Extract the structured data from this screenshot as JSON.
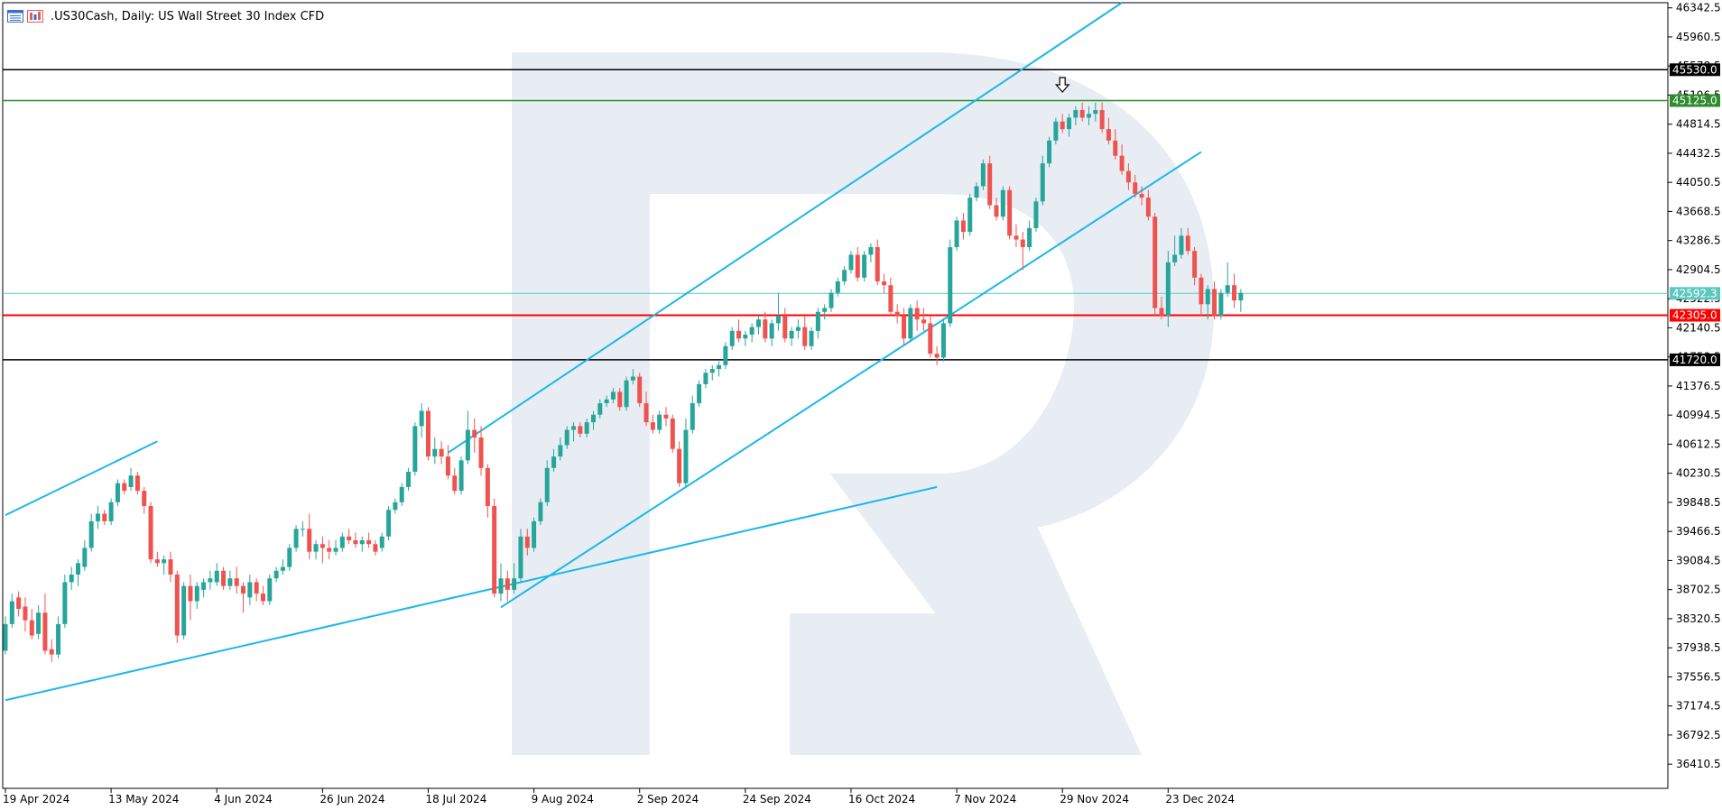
{
  "header": {
    "symbol": ".US30Cash, Daily:",
    "description": "US Wall Street 30 Index CFD",
    "icons": [
      "toolbar-list-icon",
      "bar-chart-icon"
    ]
  },
  "colors": {
    "bull": "#26a69a",
    "bear": "#ef5350",
    "trendline": "#1ab7ea",
    "resistance": "#000000",
    "take_profit": "#2e8b2e",
    "stop": "#ff0000",
    "current_price": "#5cc8c0",
    "watermark": "#e8edf4"
  },
  "chart_data": {
    "type": "candlestick",
    "symbol": ".US30Cash",
    "timeframe": "Daily",
    "ylim": [
      36092.5,
      46410.0
    ],
    "y_ticks": [
      "46342.5",
      "45960.5",
      "45578.5",
      "45196.5",
      "44814.5",
      "44432.5",
      "44050.5",
      "43668.5",
      "43286.5",
      "42904.5",
      "42522.5",
      "42140.5",
      "41758.5",
      "41376.5",
      "40994.5",
      "40612.5",
      "40230.5",
      "39848.5",
      "39466.5",
      "39084.5",
      "38702.5",
      "38320.5",
      "37938.5",
      "37556.5",
      "37174.5",
      "36792.5",
      "36410.5"
    ],
    "x_labels": [
      "19 Apr 2024",
      "13 May 2024",
      "4 Jun 2024",
      "26 Jun 2024",
      "18 Jul 2024",
      "9 Aug 2024",
      "2 Sep 2024",
      "24 Sep 2024",
      "16 Oct 2024",
      "7 Nov 2024",
      "29 Nov 2024",
      "23 Dec 2024"
    ],
    "x_label_index": [
      0,
      16,
      32,
      48,
      64,
      80,
      96,
      112,
      128,
      144,
      160,
      176
    ],
    "horizontal_levels": [
      {
        "value": 45530.0,
        "label": "45530.0",
        "role": "resistance"
      },
      {
        "value": 45125.0,
        "label": "45125.0",
        "role": "take_profit"
      },
      {
        "value": 42592.3,
        "label": "42592.3",
        "role": "current_price"
      },
      {
        "value": 42305.0,
        "label": "42305.0",
        "role": "stop"
      },
      {
        "value": 41720.0,
        "label": "41720.0",
        "role": "resistance"
      }
    ],
    "trendlines": [
      {
        "from": [
          0,
          39680
        ],
        "to": [
          23,
          40650
        ]
      },
      {
        "from": [
          0,
          37250
        ],
        "to": [
          141,
          40050
        ]
      },
      {
        "from": [
          67,
          40500
        ],
        "to": [
          169,
          46410
        ]
      },
      {
        "from": [
          75,
          38470
        ],
        "to": [
          181,
          44450
        ]
      }
    ],
    "down_arrow_index": 160,
    "candles": [
      [
        37900,
        38350,
        37850,
        38250
      ],
      [
        38250,
        38650,
        38200,
        38550
      ],
      [
        38600,
        38680,
        38350,
        38450
      ],
      [
        38480,
        38600,
        38150,
        38300
      ],
      [
        38300,
        38450,
        38050,
        38100
      ],
      [
        38120,
        38500,
        38050,
        38400
      ],
      [
        38400,
        38650,
        37850,
        37900
      ],
      [
        37920,
        38050,
        37750,
        37850
      ],
      [
        37850,
        38350,
        37800,
        38250
      ],
      [
        38250,
        38900,
        38200,
        38800
      ],
      [
        38800,
        39000,
        38700,
        38900
      ],
      [
        38900,
        39100,
        38750,
        39050
      ],
      [
        39000,
        39350,
        38950,
        39250
      ],
      [
        39250,
        39700,
        39200,
        39600
      ],
      [
        39600,
        39800,
        39500,
        39700
      ],
      [
        39700,
        39750,
        39550,
        39600
      ],
      [
        39600,
        39900,
        39550,
        39850
      ],
      [
        39850,
        40150,
        39800,
        40100
      ],
      [
        40100,
        40150,
        39950,
        40000
      ],
      [
        40050,
        40300,
        40000,
        40200
      ],
      [
        40200,
        40250,
        39950,
        40000
      ],
      [
        40000,
        40050,
        39700,
        39800
      ],
      [
        39800,
        39850,
        39050,
        39100
      ],
      [
        39100,
        39200,
        39000,
        39050
      ],
      [
        39050,
        39150,
        38900,
        39100
      ],
      [
        39100,
        39200,
        38800,
        38900
      ],
      [
        38900,
        38950,
        38000,
        38100
      ],
      [
        38100,
        38800,
        38050,
        38750
      ],
      [
        38750,
        38900,
        38300,
        38550
      ],
      [
        38550,
        38800,
        38450,
        38750
      ],
      [
        38700,
        38850,
        38600,
        38800
      ],
      [
        38800,
        38950,
        38700,
        38850
      ],
      [
        38800,
        39050,
        38750,
        38950
      ],
      [
        38950,
        39000,
        38700,
        38750
      ],
      [
        38750,
        38950,
        38700,
        38850
      ],
      [
        38850,
        39000,
        38650,
        38750
      ],
      [
        38750,
        38800,
        38400,
        38650
      ],
      [
        38600,
        38900,
        38500,
        38800
      ],
      [
        38800,
        38850,
        38550,
        38650
      ],
      [
        38650,
        38750,
        38500,
        38550
      ],
      [
        38550,
        38900,
        38500,
        38850
      ],
      [
        38850,
        39000,
        38800,
        38950
      ],
      [
        38950,
        39100,
        38900,
        39000
      ],
      [
        39000,
        39300,
        38950,
        39250
      ],
      [
        39250,
        39550,
        39200,
        39500
      ],
      [
        39500,
        39600,
        39400,
        39500
      ],
      [
        39500,
        39700,
        39100,
        39200
      ],
      [
        39200,
        39350,
        39100,
        39300
      ],
      [
        39300,
        39400,
        39050,
        39250
      ],
      [
        39250,
        39350,
        39100,
        39200
      ],
      [
        39200,
        39350,
        39150,
        39250
      ],
      [
        39250,
        39450,
        39200,
        39400
      ],
      [
        39400,
        39500,
        39300,
        39350
      ],
      [
        39350,
        39450,
        39250,
        39300
      ],
      [
        39300,
        39400,
        39200,
        39350
      ],
      [
        39350,
        39450,
        39250,
        39300
      ],
      [
        39300,
        39350,
        39150,
        39200
      ],
      [
        39250,
        39450,
        39200,
        39400
      ],
      [
        39400,
        39800,
        39350,
        39750
      ],
      [
        39750,
        39900,
        39700,
        39850
      ],
      [
        39850,
        40100,
        39800,
        40050
      ],
      [
        40050,
        40300,
        40000,
        40250
      ],
      [
        40250,
        40900,
        40200,
        40850
      ],
      [
        40850,
        41150,
        40700,
        41050
      ],
      [
        41050,
        41100,
        40400,
        40450
      ],
      [
        40450,
        40700,
        40350,
        40550
      ],
      [
        40550,
        40650,
        40350,
        40450
      ],
      [
        40450,
        40600,
        40150,
        40200
      ],
      [
        40200,
        40300,
        39950,
        40000
      ],
      [
        40000,
        40450,
        39950,
        40400
      ],
      [
        40400,
        41050,
        40350,
        40800
      ],
      [
        40800,
        40950,
        40500,
        40700
      ],
      [
        40700,
        40850,
        40200,
        40300
      ],
      [
        40300,
        40350,
        39650,
        39800
      ],
      [
        39800,
        39900,
        38600,
        38650
      ],
      [
        38650,
        39050,
        38550,
        38850
      ],
      [
        38850,
        38950,
        38550,
        38700
      ],
      [
        38700,
        39050,
        38650,
        38850
      ],
      [
        38850,
        39500,
        38800,
        39400
      ],
      [
        39400,
        39500,
        39150,
        39250
      ],
      [
        39250,
        39650,
        39200,
        39600
      ],
      [
        39600,
        39900,
        39550,
        39850
      ],
      [
        39850,
        40400,
        39800,
        40300
      ],
      [
        40300,
        40550,
        40250,
        40450
      ],
      [
        40450,
        40700,
        40400,
        40600
      ],
      [
        40600,
        40850,
        40550,
        40800
      ],
      [
        40800,
        40900,
        40650,
        40850
      ],
      [
        40850,
        40900,
        40700,
        40750
      ],
      [
        40750,
        40950,
        40700,
        40900
      ],
      [
        40900,
        41050,
        40800,
        41000
      ],
      [
        41000,
        41200,
        40950,
        41150
      ],
      [
        41150,
        41250,
        41100,
        41200
      ],
      [
        41200,
        41350,
        41150,
        41300
      ],
      [
        41300,
        41350,
        41050,
        41100
      ],
      [
        41100,
        41500,
        41050,
        41450
      ],
      [
        41450,
        41600,
        41400,
        41500
      ],
      [
        41500,
        41550,
        41100,
        41150
      ],
      [
        41150,
        41300,
        40850,
        40900
      ],
      [
        40900,
        41000,
        40750,
        40800
      ],
      [
        40800,
        41050,
        40750,
        41000
      ],
      [
        41000,
        41100,
        40850,
        40950
      ],
      [
        40950,
        41000,
        40500,
        40550
      ],
      [
        40550,
        40650,
        40050,
        40100
      ],
      [
        40100,
        40950,
        40050,
        40800
      ],
      [
        40800,
        41250,
        40750,
        41150
      ],
      [
        41150,
        41450,
        41100,
        41400
      ],
      [
        41400,
        41600,
        41350,
        41550
      ],
      [
        41550,
        41650,
        41450,
        41600
      ],
      [
        41600,
        41700,
        41500,
        41650
      ],
      [
        41650,
        41950,
        41600,
        41900
      ],
      [
        41900,
        42150,
        41850,
        42100
      ],
      [
        42100,
        42250,
        41950,
        42000
      ],
      [
        42000,
        42100,
        41900,
        42050
      ],
      [
        42050,
        42200,
        41950,
        42150
      ],
      [
        42150,
        42300,
        42050,
        42250
      ],
      [
        42250,
        42350,
        41950,
        42000
      ],
      [
        42000,
        42250,
        41900,
        42200
      ],
      [
        42200,
        42600,
        42100,
        42300
      ],
      [
        42300,
        42400,
        41950,
        42000
      ],
      [
        42000,
        42150,
        41900,
        42100
      ],
      [
        42100,
        42250,
        42000,
        42150
      ],
      [
        42150,
        42300,
        41850,
        41900
      ],
      [
        41900,
        42150,
        41850,
        42100
      ],
      [
        42100,
        42400,
        42000,
        42350
      ],
      [
        42350,
        42450,
        42250,
        42400
      ],
      [
        42400,
        42650,
        42350,
        42600
      ],
      [
        42600,
        42800,
        42550,
        42750
      ],
      [
        42750,
        42950,
        42700,
        42900
      ],
      [
        42900,
        43150,
        42850,
        43100
      ],
      [
        43100,
        43200,
        42750,
        42800
      ],
      [
        42800,
        43150,
        42750,
        43100
      ],
      [
        43100,
        43250,
        43000,
        43200
      ],
      [
        43200,
        43300,
        42700,
        42750
      ],
      [
        42750,
        42850,
        42600,
        42700
      ],
      [
        42700,
        42800,
        42300,
        42350
      ],
      [
        42350,
        42450,
        42200,
        42300
      ],
      [
        42300,
        42400,
        41900,
        42000
      ],
      [
        42000,
        42450,
        41950,
        42400
      ],
      [
        42400,
        42500,
        42100,
        42250
      ],
      [
        42250,
        42400,
        42100,
        42200
      ],
      [
        42200,
        42300,
        41750,
        41800
      ],
      [
        41800,
        41900,
        41650,
        41750
      ],
      [
        41750,
        42250,
        41700,
        42200
      ],
      [
        42200,
        43300,
        42150,
        43200
      ],
      [
        43200,
        43600,
        43150,
        43550
      ],
      [
        43550,
        43650,
        43300,
        43400
      ],
      [
        43400,
        43900,
        43350,
        43850
      ],
      [
        43850,
        44050,
        43800,
        44000
      ],
      [
        44000,
        44350,
        43950,
        44300
      ],
      [
        44300,
        44400,
        43700,
        43750
      ],
      [
        43750,
        43850,
        43550,
        43600
      ],
      [
        43600,
        44000,
        43550,
        43950
      ],
      [
        43950,
        44000,
        43300,
        43350
      ],
      [
        43350,
        43500,
        43200,
        43300
      ],
      [
        43300,
        43400,
        42900,
        43200
      ],
      [
        43200,
        43550,
        43150,
        43450
      ],
      [
        43450,
        43850,
        43400,
        43800
      ],
      [
        43800,
        44400,
        43750,
        44300
      ],
      [
        44300,
        44650,
        44250,
        44600
      ],
      [
        44600,
        44900,
        44550,
        44850
      ],
      [
        44850,
        44950,
        44700,
        44750
      ],
      [
        44750,
        44950,
        44650,
        44900
      ],
      [
        44900,
        45050,
        44800,
        45000
      ],
      [
        45000,
        45100,
        44850,
        44900
      ],
      [
        44900,
        45050,
        44800,
        44950
      ],
      [
        44950,
        45100,
        44850,
        45000
      ],
      [
        45000,
        45100,
        44700,
        44750
      ],
      [
        44750,
        44900,
        44550,
        44600
      ],
      [
        44600,
        44750,
        44350,
        44400
      ],
      [
        44400,
        44550,
        44150,
        44200
      ],
      [
        44200,
        44300,
        43950,
        44050
      ],
      [
        44050,
        44150,
        43850,
        43900
      ],
      [
        43900,
        44000,
        43750,
        43850
      ],
      [
        43850,
        43950,
        43550,
        43600
      ],
      [
        43600,
        43650,
        42300,
        42400
      ],
      [
        42400,
        42550,
        42250,
        42300
      ],
      [
        42300,
        43150,
        42150,
        43000
      ],
      [
        43000,
        43350,
        42950,
        43100
      ],
      [
        43100,
        43450,
        43050,
        43350
      ],
      [
        43350,
        43450,
        43100,
        43150
      ],
      [
        43150,
        43200,
        42700,
        42800
      ],
      [
        42800,
        42850,
        42300,
        42450
      ],
      [
        42450,
        42700,
        42250,
        42650
      ],
      [
        42650,
        42750,
        42250,
        42300
      ],
      [
        42300,
        42650,
        42250,
        42600
      ],
      [
        42600,
        43000,
        42550,
        42700
      ],
      [
        42700,
        42850,
        42400,
        42500
      ],
      [
        42500,
        42650,
        42350,
        42600
      ]
    ]
  }
}
